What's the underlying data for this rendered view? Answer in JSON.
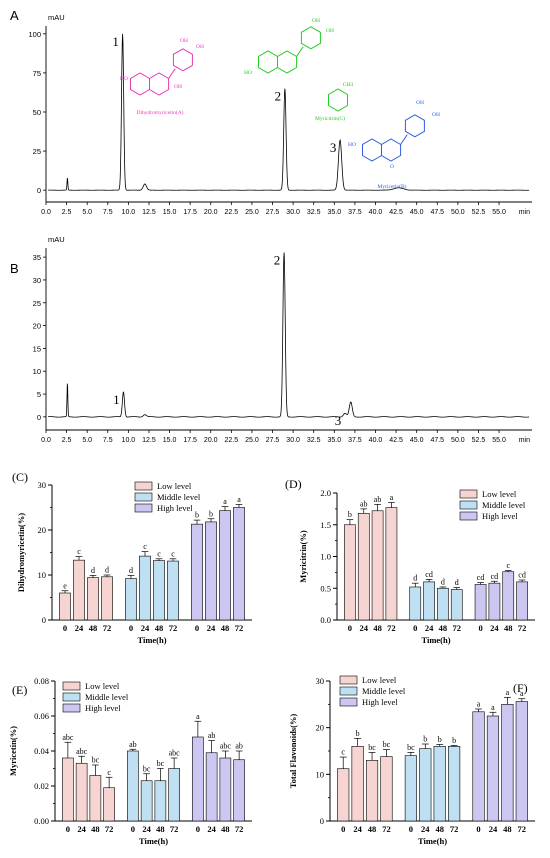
{
  "chart_data": [
    {
      "type": "line",
      "panel_label": "A",
      "ylabel": "mAU",
      "xlabel": "min",
      "xlim": [
        0,
        59
      ],
      "ylim": [
        -5,
        105
      ],
      "xticks": [
        "0.0",
        "2.5",
        "5.0",
        "7.5",
        "10.0",
        "12.5",
        "15.0",
        "17.5",
        "20.0",
        "22.5",
        "25.0",
        "27.5",
        "30.0",
        "32.5",
        "35.0",
        "37.5",
        "40.0",
        "42.5",
        "45.0",
        "47.5",
        "50.0",
        "52.5",
        "55.0"
      ],
      "yticks": [
        0,
        25,
        50,
        75,
        100
      ],
      "peaks": [
        {
          "t": 2.6,
          "h": 8,
          "w": 0.05
        },
        {
          "t": 9.3,
          "h": 100,
          "w": 0.13
        },
        {
          "t": 12.0,
          "h": 4,
          "w": 0.2
        },
        {
          "t": 29.0,
          "h": 65,
          "w": 0.14
        },
        {
          "t": 35.7,
          "h": 32,
          "w": 0.2
        },
        {
          "t": 42.8,
          "h": 1.5,
          "w": 0.6
        }
      ],
      "peak_labels": [
        {
          "text": "1",
          "t": 9.3
        },
        {
          "text": "2",
          "t": 29.0
        },
        {
          "text": "3",
          "t": 35.7
        }
      ],
      "structures": [
        {
          "name": "Dihydromyricetin(A)",
          "color": "#e83ab5"
        },
        {
          "name": "Myricitrin(C)",
          "color": "#22cc22"
        },
        {
          "name": "Myricetin(B)",
          "color": "#2f5ee0"
        }
      ],
      "structure_atoms": [
        "OH",
        "OH",
        "OH",
        "OH",
        "HO",
        "O",
        "OH",
        "CH3"
      ]
    },
    {
      "type": "line",
      "panel_label": "B",
      "ylabel": "mAU",
      "xlabel": "min",
      "xlim": [
        0,
        59
      ],
      "ylim": [
        -2,
        37
      ],
      "xticks": [
        "0.0",
        "2.5",
        "5.0",
        "7.5",
        "10.0",
        "12.5",
        "15.0",
        "17.5",
        "20.0",
        "22.5",
        "25.0",
        "27.5",
        "30.0",
        "32.5",
        "35.0",
        "37.5",
        "40.0",
        "42.5",
        "45.0",
        "47.5",
        "50.0",
        "52.5",
        "55.0"
      ],
      "yticks": [
        0,
        5,
        10,
        15,
        20,
        25,
        30,
        35
      ],
      "peaks": [
        {
          "t": 2.6,
          "h": 7.5,
          "w": 0.05
        },
        {
          "t": 9.4,
          "h": 5.5,
          "w": 0.13
        },
        {
          "t": 12.0,
          "h": 0.5,
          "w": 0.2
        },
        {
          "t": 28.9,
          "h": 36,
          "w": 0.14
        },
        {
          "t": 36.3,
          "h": 0.8,
          "w": 0.2
        },
        {
          "t": 37.0,
          "h": 3.2,
          "w": 0.18
        }
      ],
      "peak_labels": [
        {
          "text": "1",
          "t": 9.4
        },
        {
          "text": "2",
          "t": 28.9
        },
        {
          "text": "3",
          "t": 36.3
        }
      ]
    },
    {
      "type": "bar",
      "panel_label": "(C)",
      "ylabel": "Dihydromyricetin(%)",
      "xlabel": "Time(h)",
      "categories": [
        "0",
        "24",
        "48",
        "72"
      ],
      "ylim": [
        0,
        30
      ],
      "yticks": [
        "0",
        "10",
        "20",
        "30"
      ],
      "legend_position": "top-right",
      "series": [
        {
          "name": "Low level",
          "color": "#f6d4d2",
          "values": [
            6.0,
            13.3,
            9.4,
            9.6
          ],
          "errors": [
            0.5,
            0.8,
            0.5,
            0.4
          ],
          "letters": [
            "e",
            "c",
            "d",
            "d"
          ]
        },
        {
          "name": "Middle level",
          "color": "#bfe0f3",
          "values": [
            9.2,
            14.2,
            13.2,
            13.1
          ],
          "errors": [
            0.7,
            1.0,
            0.4,
            0.5
          ],
          "letters": [
            "d",
            "c",
            "c",
            "c"
          ]
        },
        {
          "name": "High level",
          "color": "#ccc7f0",
          "values": [
            21.3,
            21.8,
            24.3,
            25.0
          ],
          "errors": [
            0.9,
            0.7,
            0.9,
            0.7
          ],
          "letters": [
            "b",
            "b",
            "a",
            "a"
          ]
        }
      ]
    },
    {
      "type": "bar",
      "panel_label": "(D)",
      "ylabel": "Myricitrin(%)",
      "xlabel": "Time(h)",
      "categories": [
        "0",
        "24",
        "48",
        "72"
      ],
      "ylim": [
        0,
        2.0
      ],
      "yticks": [
        "0.0",
        "0.5",
        "1.0",
        "1.5",
        "2.0"
      ],
      "legend_position": "top-right",
      "series": [
        {
          "name": "Low level",
          "color": "#f6d4d2",
          "values": [
            1.5,
            1.68,
            1.72,
            1.77
          ],
          "errors": [
            0.08,
            0.07,
            0.1,
            0.08
          ],
          "letters": [
            "b",
            "ab",
            "ab",
            "a"
          ]
        },
        {
          "name": "Middle level",
          "color": "#bfe0f3",
          "values": [
            0.52,
            0.6,
            0.5,
            0.48
          ],
          "errors": [
            0.06,
            0.04,
            0.02,
            0.03
          ],
          "letters": [
            "d",
            "cd",
            "d",
            "d"
          ]
        },
        {
          "name": "High level",
          "color": "#ccc7f0",
          "values": [
            0.56,
            0.58,
            0.76,
            0.6
          ],
          "errors": [
            0.03,
            0.03,
            0.02,
            0.03
          ],
          "letters": [
            "cd",
            "cd",
            "c",
            "cd"
          ]
        }
      ]
    },
    {
      "type": "bar",
      "panel_label": "(E)",
      "ylabel": "Myricetin(%)",
      "xlabel": "Time(h)",
      "categories": [
        "0",
        "24",
        "48",
        "72"
      ],
      "ylim": [
        0,
        0.08
      ],
      "yticks": [
        "0.00",
        "0.02",
        "0.04",
        "0.06",
        "0.08"
      ],
      "legend_position": "top-left",
      "series": [
        {
          "name": "Low level",
          "color": "#f6d4d2",
          "values": [
            0.036,
            0.033,
            0.026,
            0.019
          ],
          "errors": [
            0.009,
            0.004,
            0.006,
            0.006
          ],
          "letters": [
            "abc",
            "abc",
            "bc",
            "c"
          ]
        },
        {
          "name": "Middle level",
          "color": "#bfe0f3",
          "values": [
            0.04,
            0.023,
            0.023,
            0.03
          ],
          "errors": [
            0.001,
            0.004,
            0.007,
            0.006
          ],
          "letters": [
            "ab",
            "bc",
            "bc",
            "abc"
          ]
        },
        {
          "name": "High level",
          "color": "#ccc7f0",
          "values": [
            0.048,
            0.039,
            0.036,
            0.035
          ],
          "errors": [
            0.009,
            0.007,
            0.004,
            0.005
          ],
          "letters": [
            "a",
            "ab",
            "abc",
            "ab"
          ]
        }
      ]
    },
    {
      "type": "bar",
      "panel_label": "(F)",
      "ylabel": "Total Flavonoids(%)",
      "xlabel": "Time(h)",
      "categories": [
        "0",
        "24",
        "48",
        "72"
      ],
      "ylim": [
        0,
        30
      ],
      "yticks": [
        "0",
        "10",
        "20",
        "30"
      ],
      "legend_position": "top-left",
      "series": [
        {
          "name": "Low level",
          "color": "#f6d4d2",
          "values": [
            11.2,
            16.0,
            13.0,
            13.8
          ],
          "errors": [
            2.5,
            1.7,
            1.7,
            1.5
          ],
          "letters": [
            "c",
            "b",
            "bc",
            "bc"
          ]
        },
        {
          "name": "Middle level",
          "color": "#bfe0f3",
          "values": [
            14.0,
            15.5,
            16.0,
            16.0
          ],
          "errors": [
            0.7,
            1.0,
            0.4,
            0.2
          ],
          "letters": [
            "bc",
            "b",
            "b",
            "b"
          ]
        },
        {
          "name": "High level",
          "color": "#ccc7f0",
          "values": [
            23.4,
            22.5,
            25.0,
            25.6
          ],
          "errors": [
            0.6,
            0.8,
            1.5,
            0.6
          ],
          "letters": [
            "a",
            "a",
            "a",
            "a"
          ]
        }
      ]
    }
  ]
}
